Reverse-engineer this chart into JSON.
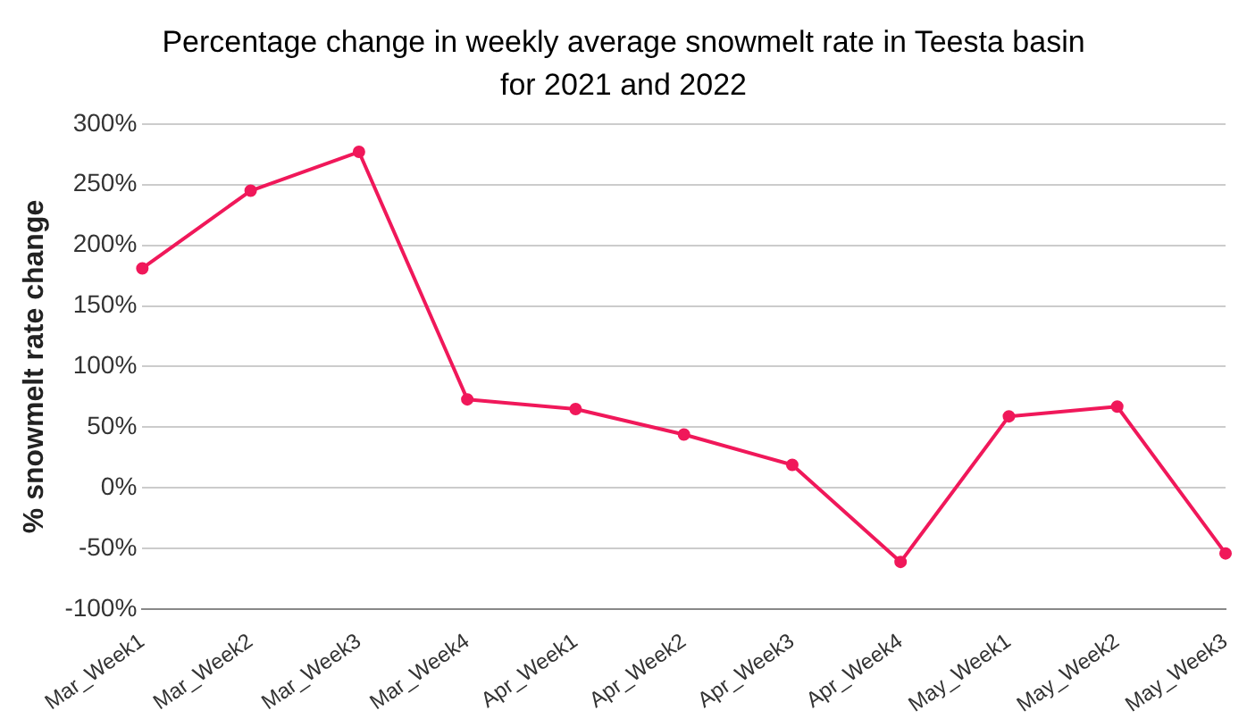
{
  "chart_data": {
    "type": "line",
    "title": "Percentage change in weekly average snowmelt rate in Teesta basin for 2021 and 2022",
    "ylabel": "% snowmelt rate change",
    "categories": [
      "Mar_Week1",
      "Mar_Week2",
      "Mar_Week3",
      "Mar_Week4",
      "Apr_Week1",
      "Apr_Week2",
      "Apr_Week3",
      "Apr_Week4",
      "May_Week1",
      "May_Week2",
      "May_Week3"
    ],
    "series": [
      {
        "color": "#f0185a",
        "values": [
          181,
          245,
          277,
          73,
          65,
          44,
          19,
          -61,
          59,
          67,
          -54
        ]
      }
    ],
    "ylim": [
      -100,
      300
    ],
    "yticks": [
      {
        "value": -100,
        "label": "-100%"
      },
      {
        "value": -50,
        "label": "-50%"
      },
      {
        "value": 0,
        "label": "0%"
      },
      {
        "value": 50,
        "label": "50%"
      },
      {
        "value": 100,
        "label": "100%"
      },
      {
        "value": 150,
        "label": "150%"
      },
      {
        "value": 200,
        "label": "200%"
      },
      {
        "value": 250,
        "label": "250%"
      },
      {
        "value": 300,
        "label": "300%"
      }
    ],
    "grid": "y",
    "legend": false,
    "marker": "circle",
    "line_style": "solid"
  }
}
